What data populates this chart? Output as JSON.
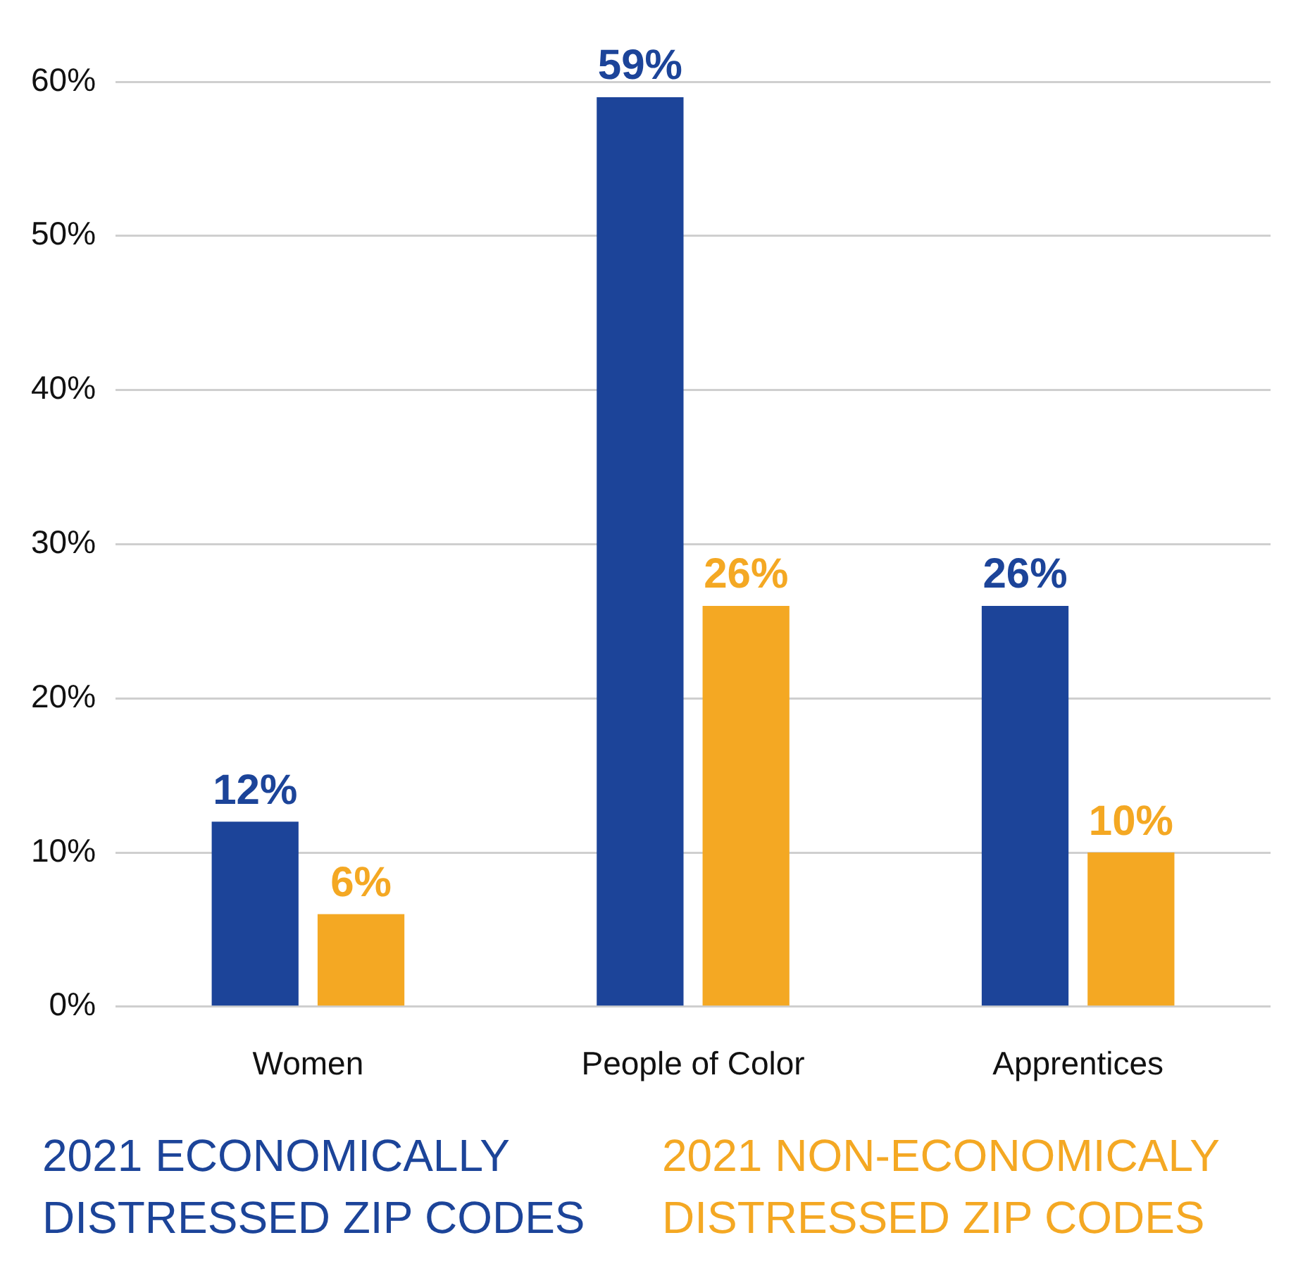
{
  "chart_data": {
    "type": "bar",
    "categories": [
      "Women",
      "People of Color",
      "Apprentices"
    ],
    "series": [
      {
        "name": "2021 ECONOMICALLY DISTRESSED ZIP CODES",
        "color": "#1c4499",
        "values": [
          12,
          59,
          26
        ],
        "value_labels": [
          "12%",
          "59%",
          "26%"
        ]
      },
      {
        "name": "2021 NON-ECONOMICALY DISTRESSED ZIP CODES",
        "color": "#f4a823",
        "values": [
          6,
          26,
          10
        ],
        "value_labels": [
          "6%",
          "26%",
          "10%"
        ]
      }
    ],
    "ylim": [
      0,
      60
    ],
    "yticks": [
      {
        "value": 0,
        "label": "0%"
      },
      {
        "value": 10,
        "label": "10%"
      },
      {
        "value": 20,
        "label": "20%"
      },
      {
        "value": 30,
        "label": "30%"
      },
      {
        "value": 40,
        "label": "40%"
      },
      {
        "value": 50,
        "label": "50%"
      },
      {
        "value": 60,
        "label": "60%"
      }
    ],
    "grid": "y",
    "legend": "bottom"
  }
}
